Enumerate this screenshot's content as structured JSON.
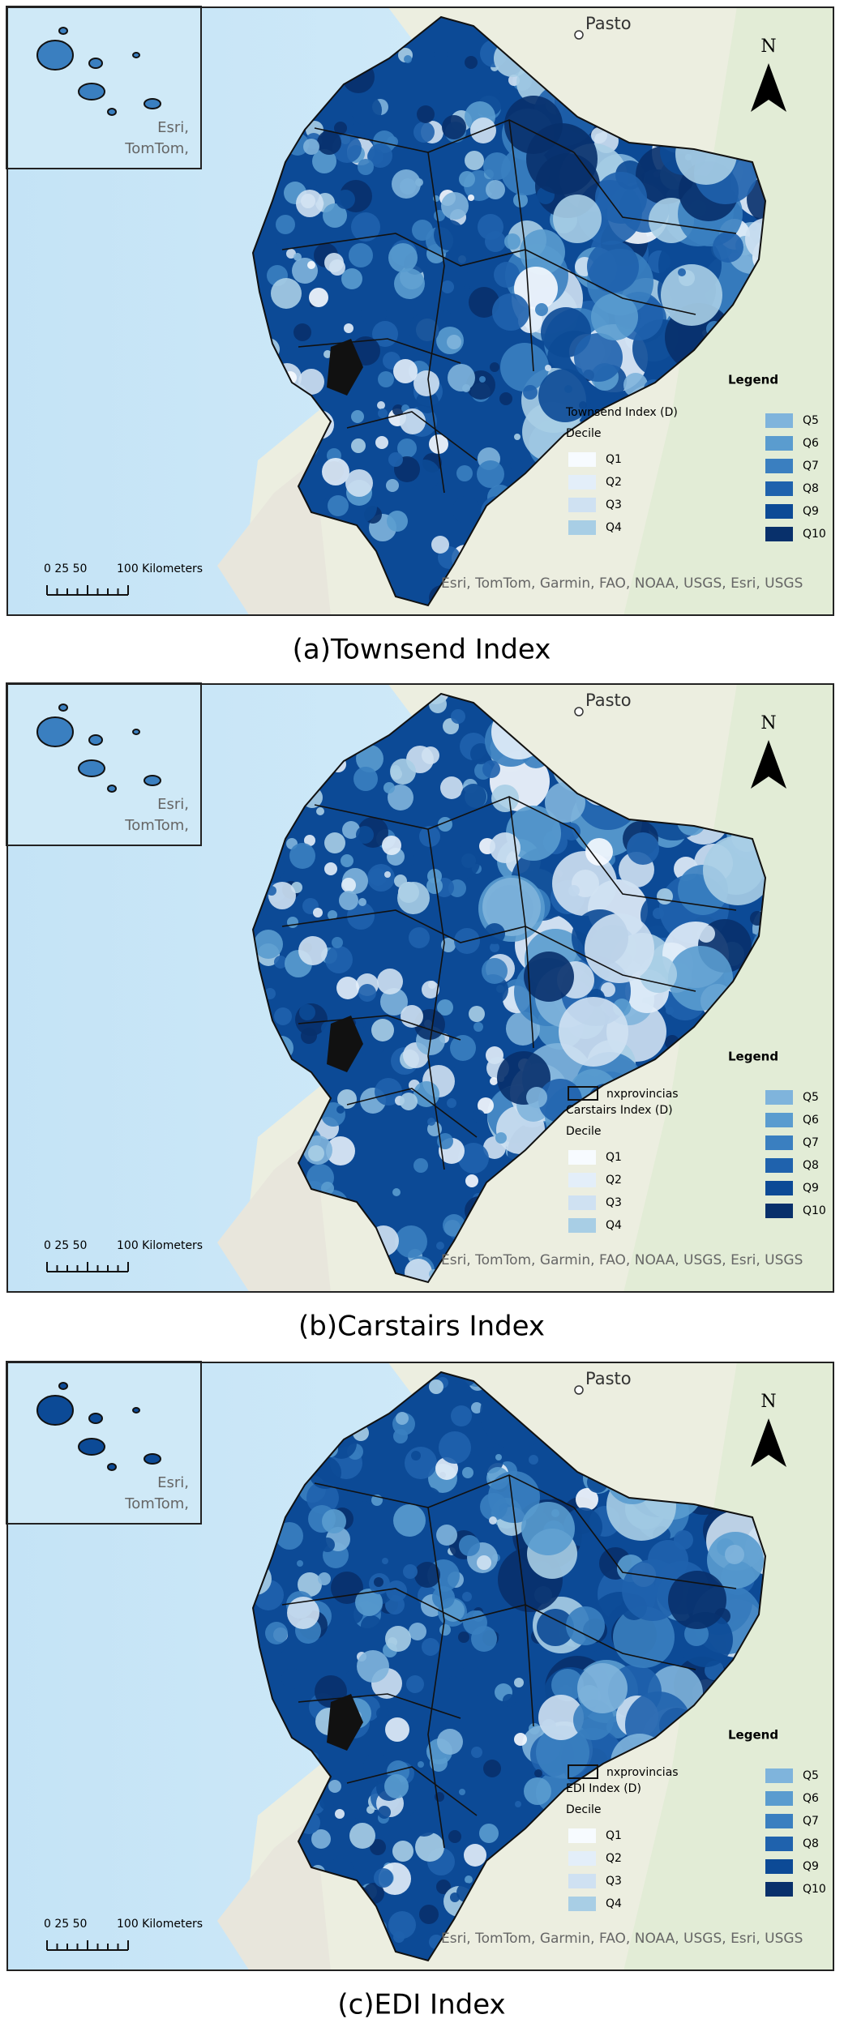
{
  "panels": [
    {
      "caption": "(a)Townsend Index",
      "place": "Pasto",
      "north": "N",
      "inset_attribution": [
        "Esri,",
        "TomTom,"
      ],
      "legend": {
        "title": "Legend",
        "index": "Townsend Index (D)",
        "decile": "Decile",
        "classes": [
          "Q1",
          "Q2",
          "Q3",
          "Q4",
          "Q5",
          "Q6",
          "Q7",
          "Q8",
          "Q9",
          "Q10"
        ]
      },
      "scale": [
        "0 25 50",
        "100 Kilometers"
      ],
      "attribution": "Esri, TomTom, Garmin, FAO, NOAA, USGS, Esri, USGS"
    },
    {
      "caption": "(b)Carstairs Index",
      "place": "Pasto",
      "north": "N",
      "inset_attribution": [
        "Esri,",
        "TomTom,"
      ],
      "legend": {
        "title": "Legend",
        "layer": "nxprovincias",
        "index": "Carstairs Index (D)",
        "decile": "Decile",
        "classes": [
          "Q1",
          "Q2",
          "Q3",
          "Q4",
          "Q5",
          "Q6",
          "Q7",
          "Q8",
          "Q9",
          "Q10"
        ]
      },
      "scale": [
        "0 25 50",
        "100 Kilometers"
      ],
      "attribution": "Esri, TomTom, Garmin, FAO, NOAA, USGS, Esri, USGS"
    },
    {
      "caption": "(c)EDI Index",
      "place": "Pasto",
      "north": "N",
      "inset_attribution": [
        "Esri,",
        "TomTom,"
      ],
      "legend": {
        "title": "Legend",
        "layer": "nxprovincias",
        "index": "EDI Index (D)",
        "decile": "Decile",
        "classes": [
          "Q1",
          "Q2",
          "Q3",
          "Q4",
          "Q5",
          "Q6",
          "Q7",
          "Q8",
          "Q9",
          "Q10"
        ]
      },
      "scale": [
        "0 25 50",
        "100 Kilometers"
      ],
      "attribution": "Esri, TomTom, Garmin, FAO, NOAA, USGS, Esri, USGS"
    }
  ]
}
